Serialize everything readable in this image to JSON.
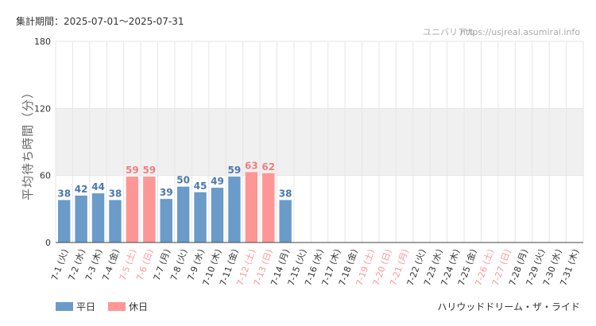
{
  "header": {
    "period_label": "集計期間：2025-07-01～2025-07-31",
    "site_name": "ユニバリアル",
    "site_url": "https://usjreal.asumirai.info"
  },
  "footer": {
    "ride_name": "ハリウッドドリーム・ザ・ライド"
  },
  "colors": {
    "weekday": "#6b9bc8",
    "holiday": "#ff9696",
    "weekday_label": "#4a78b0",
    "holiday_label": "#f07e7e",
    "band": "#f0f0f0",
    "grid": "#e6e6e6"
  },
  "chart_data": {
    "type": "bar",
    "ylabel": "平均待ち時間（分）",
    "ylim": [
      0,
      180
    ],
    "yticks": [
      0,
      60,
      120,
      180
    ],
    "band": [
      60,
      120
    ],
    "grid": true,
    "legend": {
      "placement": "bottom-left",
      "items": [
        {
          "key": "weekday",
          "label": "平日"
        },
        {
          "key": "holiday",
          "label": "休日"
        }
      ]
    },
    "categories": [
      "7-1 (火)",
      "7-2 (水)",
      "7-3 (木)",
      "7-4 (金)",
      "7-5 (土)",
      "7-6 (日)",
      "7-7 (月)",
      "7-8 (火)",
      "7-9 (水)",
      "7-10 (木)",
      "7-11 (金)",
      "7-12 (土)",
      "7-13 (日)",
      "7-14 (月)",
      "7-15 (火)",
      "7-16 (水)",
      "7-17 (木)",
      "7-18 (金)",
      "7-19 (土)",
      "7-20 (日)",
      "7-21 (月)",
      "7-22 (火)",
      "7-23 (水)",
      "7-24 (木)",
      "7-25 (金)",
      "7-26 (土)",
      "7-27 (日)",
      "7-28 (月)",
      "7-29 (火)",
      "7-30 (水)",
      "7-31 (木)"
    ],
    "holiday": [
      false,
      false,
      false,
      false,
      true,
      true,
      false,
      false,
      false,
      false,
      false,
      true,
      true,
      false,
      false,
      false,
      false,
      false,
      true,
      true,
      true,
      false,
      false,
      false,
      false,
      true,
      true,
      false,
      false,
      false,
      false
    ],
    "values": [
      38,
      42,
      44,
      38,
      59,
      59,
      39,
      50,
      45,
      49,
      59,
      63,
      62,
      38,
      null,
      null,
      null,
      null,
      null,
      null,
      null,
      null,
      null,
      null,
      null,
      null,
      null,
      null,
      null,
      null,
      null
    ]
  }
}
